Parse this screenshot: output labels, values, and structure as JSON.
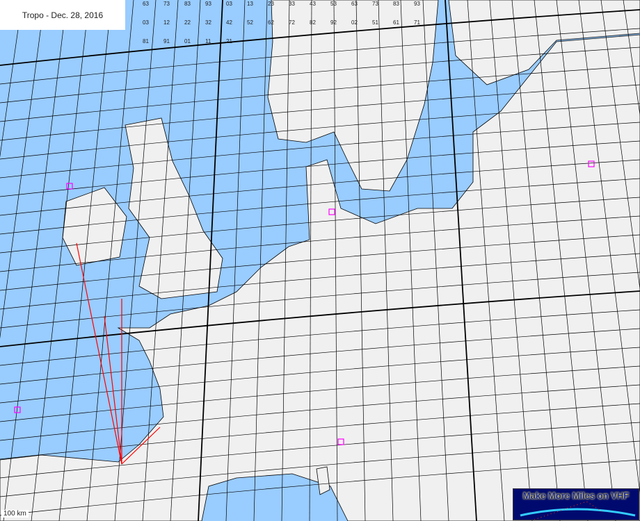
{
  "title": "Tropo - Dec. 28, 2016",
  "scale_label": "100 km",
  "logo_text": "Make More Miles on VHF",
  "colors": {
    "sea": "#99ccff",
    "land": "#f0f0f0",
    "grid": "#000000",
    "border": "#000000",
    "marker": "#ff00ff",
    "path": "#ff0000",
    "logo_bg": "#000a6e"
  },
  "markers": {
    "icon": "station-marker-icon",
    "count": 5
  },
  "sample_grid_labels": [
    "63",
    "73",
    "83",
    "93",
    "03",
    "13",
    "23",
    "33",
    "43",
    "53",
    "63",
    "73",
    "83",
    "93",
    "03",
    "12",
    "22",
    "32",
    "42",
    "52",
    "62",
    "72",
    "82",
    "92",
    "02",
    "51",
    "61",
    "71",
    "81",
    "91",
    "01",
    "11",
    "21"
  ]
}
